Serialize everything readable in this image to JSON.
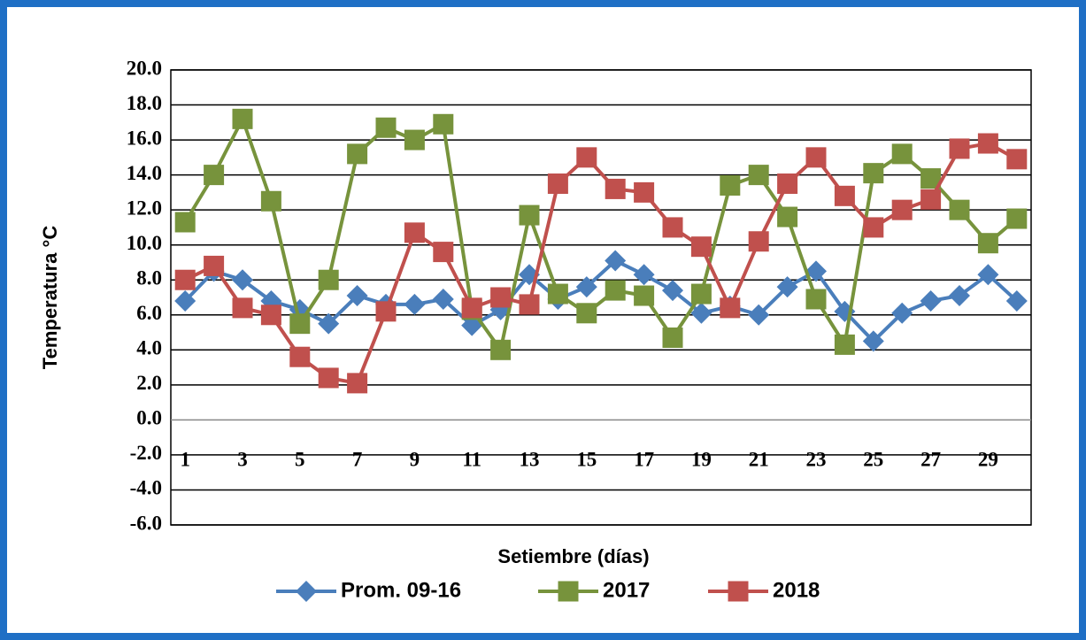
{
  "chart_data": {
    "type": "line",
    "x_label": "Setiembre (días)",
    "y_label": "Temperatura  °C",
    "categories": [
      "1",
      null,
      "3",
      null,
      "5",
      null,
      "7",
      null,
      "9",
      null,
      "11",
      null,
      "13",
      null,
      "15",
      null,
      "17",
      null,
      "19",
      null,
      "21",
      null,
      "23",
      null,
      "25",
      null,
      "27",
      null,
      "29",
      null
    ],
    "series": [
      {
        "name": "Prom. 09-16",
        "color": "#4a7ebb",
        "marker": "diamond",
        "values": [
          6.8,
          8.5,
          8.0,
          6.8,
          6.3,
          5.5,
          7.1,
          6.6,
          6.6,
          6.9,
          5.4,
          6.3,
          8.3,
          6.9,
          7.6,
          9.1,
          8.3,
          7.4,
          6.1,
          6.5,
          6.0,
          7.6,
          8.5,
          6.2,
          4.5,
          6.1,
          6.8,
          7.1,
          8.3,
          6.8
        ]
      },
      {
        "name": "2017",
        "color": "#77933c",
        "marker": "square",
        "values": [
          11.3,
          14.0,
          17.2,
          12.5,
          5.5,
          8.0,
          15.2,
          16.7,
          16.0,
          16.9,
          6.3,
          4.0,
          11.7,
          7.2,
          6.1,
          7.4,
          7.1,
          4.7,
          7.2,
          13.4,
          14.0,
          11.6,
          6.9,
          4.3,
          14.1,
          15.2,
          13.8,
          12.0,
          10.1,
          11.5
        ]
      },
      {
        "name": "2018",
        "color": "#c0504d",
        "marker": "square",
        "values": [
          8.0,
          8.8,
          6.4,
          6.0,
          3.6,
          2.4,
          2.1,
          6.2,
          10.7,
          9.6,
          6.4,
          7.0,
          6.6,
          13.5,
          15.0,
          13.2,
          13.0,
          11.0,
          9.9,
          6.4,
          10.2,
          13.5,
          15.0,
          12.8,
          11.0,
          12.0,
          12.6,
          15.5,
          15.8,
          14.9
        ]
      }
    ],
    "ylim": [
      -6,
      20
    ],
    "yticks": [
      {
        "value": -6,
        "label": "-6.0"
      },
      {
        "value": -4,
        "label": "-4.0"
      },
      {
        "value": -2,
        "label": "-2.0"
      },
      {
        "value": 0,
        "label": "0.0"
      },
      {
        "value": 2,
        "label": "2.0"
      },
      {
        "value": 4,
        "label": "4.0"
      },
      {
        "value": 6,
        "label": "6.0"
      },
      {
        "value": 8,
        "label": "8.0"
      },
      {
        "value": 10,
        "label": "10.0"
      },
      {
        "value": 12,
        "label": "12.0"
      },
      {
        "value": 14,
        "label": "14.0"
      },
      {
        "value": 16,
        "label": "16.0"
      },
      {
        "value": 18,
        "label": "18.0"
      },
      {
        "value": 20,
        "label": "20.0"
      }
    ],
    "grid": true,
    "legend": "bottom"
  }
}
